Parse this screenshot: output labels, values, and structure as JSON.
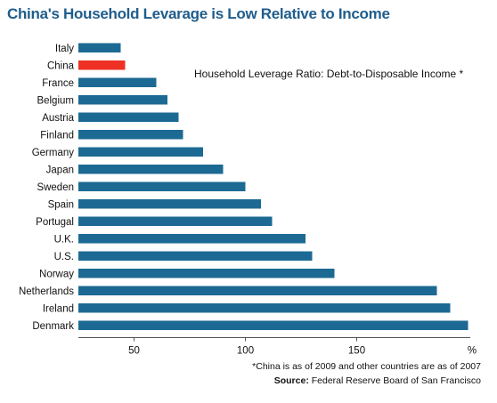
{
  "title": "China's Household Levarage is Low Relative to Income",
  "footnote": "*China is as of 2009 and other countries are as of 2007",
  "source_label": "Source:",
  "source_text": "Federal Reserve Board of San Francisco",
  "colors": {
    "bar": "#1c6a93",
    "highlight": "#ee3124",
    "title": "#1f5d8c"
  },
  "chart_data": {
    "type": "bar",
    "orientation": "horizontal",
    "title": "Household Leverage Ratio: Debt-to-Disposable Income *",
    "xlabel": "",
    "x_unit_label": "%",
    "categories": [
      "Italy",
      "China",
      "France",
      "Belgium",
      "Austria",
      "Finland",
      "Germany",
      "Japan",
      "Sweden",
      "Spain",
      "Portugal",
      "U.K.",
      "U.S.",
      "Norway",
      "Netherlands",
      "Ireland",
      "Denmark"
    ],
    "values": [
      44,
      46,
      60,
      65,
      70,
      72,
      81,
      90,
      100,
      107,
      112,
      127,
      130,
      140,
      186,
      192,
      200
    ],
    "highlight_category": "China",
    "xticks": [
      50,
      100,
      150
    ],
    "xlim": [
      25,
      201
    ],
    "grid": false
  }
}
